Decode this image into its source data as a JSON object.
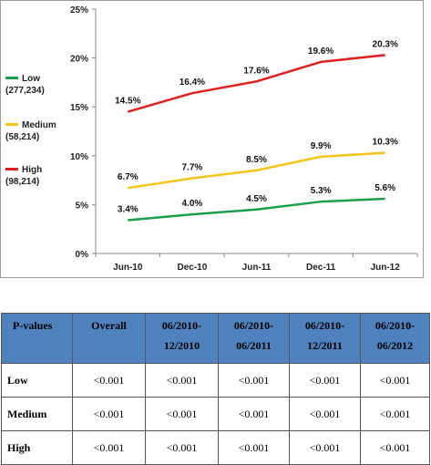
{
  "chart_data": {
    "type": "line",
    "categories": [
      "Jun-10",
      "Dec-10",
      "Jun-11",
      "Dec-11",
      "Jun-12"
    ],
    "ylim": [
      0,
      25
    ],
    "yticks": [
      "0%",
      "5%",
      "10%",
      "15%",
      "20%",
      "25%"
    ],
    "ytick_values": [
      0,
      5,
      10,
      15,
      20,
      25
    ],
    "grid": false,
    "legend_position": "left",
    "series": [
      {
        "name": "Low",
        "sub": "(277,234)",
        "color": "#1aa04b",
        "values": [
          3.4,
          4.0,
          4.5,
          5.3,
          5.6
        ],
        "labels": [
          "3.4%",
          "4.0%",
          "4.5%",
          "5.3%",
          "5.6%"
        ]
      },
      {
        "name": "Medium",
        "sub": "(58,214)",
        "color": "#f5c518",
        "values": [
          6.7,
          7.7,
          8.5,
          9.9,
          10.3
        ],
        "labels": [
          "6.7%",
          "7.7%",
          "8.5%",
          "9.9%",
          "10.3%"
        ]
      },
      {
        "name": "High",
        "sub": "(98,214)",
        "color": "#e0201f",
        "values": [
          14.5,
          16.4,
          17.6,
          19.6,
          20.3
        ],
        "labels": [
          "14.5%",
          "16.4%",
          "17.6%",
          "19.6%",
          "20.3%"
        ]
      }
    ]
  },
  "table": {
    "headers": [
      "P-values",
      "Overall",
      "06/2010-12/2010",
      "06/2010-06/2011",
      "06/2010-12/2011",
      "06/2010-06/2012"
    ],
    "rows": [
      {
        "label": "Low",
        "values": [
          "<0.001",
          "<0.001",
          "<0.001",
          "<0.001",
          "<0.001"
        ]
      },
      {
        "label": "Medium",
        "values": [
          "<0.001",
          "<0.001",
          "<0.001",
          "<0.001",
          "<0.001"
        ]
      },
      {
        "label": "High",
        "values": [
          "<0.001",
          "<0.001",
          "<0.001",
          "<0.001",
          "<0.001"
        ]
      }
    ]
  }
}
